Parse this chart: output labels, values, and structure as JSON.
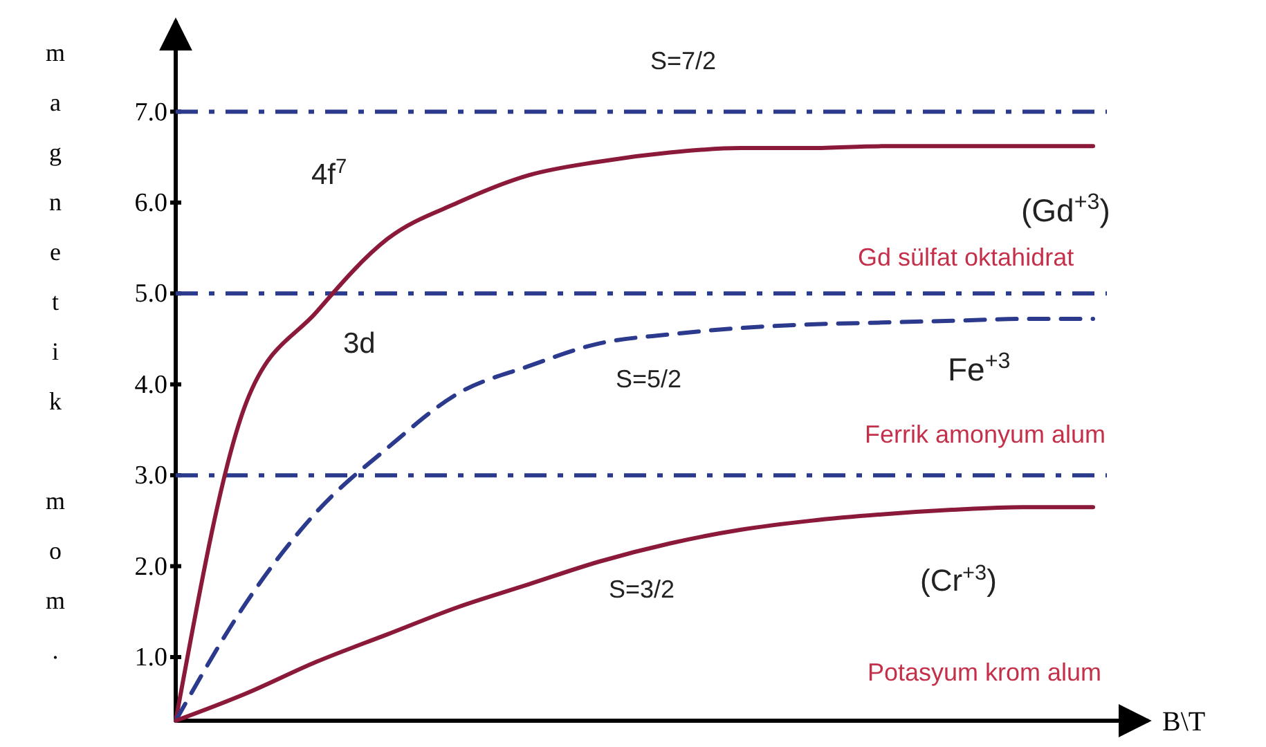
{
  "chart_data": {
    "type": "line",
    "xlabel": "B\\T",
    "ylabel": "magnetik mom.",
    "categories": [
      null,
      null,
      null,
      null,
      null,
      null,
      null,
      null,
      null,
      null,
      null,
      null,
      null,
      null
    ],
    "series": [
      {
        "color": "#8b1a3a",
        "line_style": "solid",
        "values": [
          0.3,
          3.8,
          4.8,
          5.6,
          6.0,
          6.3,
          6.45,
          6.55,
          6.6,
          6.6,
          6.62,
          6.62,
          6.62,
          6.62
        ]
      },
      {
        "color": "#2b3a8c",
        "line_style": "dashed",
        "values": [
          0.3,
          1.6,
          2.6,
          3.3,
          3.9,
          4.2,
          4.45,
          4.55,
          4.62,
          4.66,
          4.68,
          4.7,
          4.72,
          4.72
        ]
      },
      {
        "color": "#8b1a3a",
        "line_style": "solid",
        "values": [
          0.3,
          0.6,
          0.95,
          1.25,
          1.55,
          1.8,
          2.05,
          2.25,
          2.4,
          2.5,
          2.57,
          2.62,
          2.65,
          2.65
        ]
      }
    ],
    "ylim": [
      0.3,
      8.0
    ],
    "yticks": [
      {
        "value": 1,
        "label": "1.0"
      },
      {
        "value": 2,
        "label": "2.0"
      },
      {
        "value": 3,
        "label": "3.0"
      },
      {
        "value": 4,
        "label": "4.0"
      },
      {
        "value": 5,
        "label": "5.0"
      },
      {
        "value": 6,
        "label": "6.0"
      },
      {
        "value": 7,
        "label": "7.0"
      }
    ],
    "tick_labels": "y",
    "grid": false,
    "marker": "none",
    "ref_lines": [
      {
        "axis": "y",
        "value": 7,
        "color": "#2b3a8c",
        "line_style": "dashed"
      },
      {
        "axis": "y",
        "value": 5,
        "color": "#2b3a8c",
        "line_style": "dashed"
      },
      {
        "axis": "y",
        "value": 3,
        "color": "#2b3a8c",
        "line_style": "dashed"
      }
    ],
    "annotations": [
      "S=7/2",
      "4f$^{7}$",
      "(Gd$^{+3}$)",
      "Gd sülfat oktahidrat",
      "3d",
      "S=5/2",
      "Fe$^{+3}$",
      "Ferrik amonyum alum",
      "(Cr$^{+3}$)",
      "S=3/2",
      "Potasyum krom alum"
    ]
  }
}
